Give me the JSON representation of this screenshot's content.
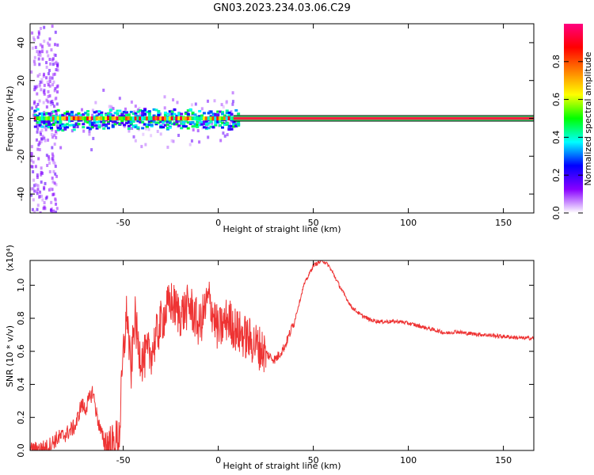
{
  "title": "GN03.2023.234.03.06.C29",
  "colors": {
    "snr_line": "#ee3333",
    "spectrogram_background": "#ffffff",
    "colormap": [
      "#ffffff",
      "#8800ff",
      "#0000ff",
      "#00ffff",
      "#00ff00",
      "#ffff00",
      "#ff8000",
      "#ff0000",
      "#ff0080"
    ]
  },
  "chart_data": [
    {
      "type": "heatmap",
      "xlabel": "Height of straight line (km)",
      "ylabel": "Frequency (Hz)",
      "xlim": [
        -99,
        166
      ],
      "ylim": [
        -50,
        50
      ],
      "xticks": [
        -50,
        0,
        50,
        100,
        150
      ],
      "yticks": [
        -40,
        -20,
        0,
        20,
        40
      ],
      "colorbar": {
        "label": "Normalized spectral amplitude",
        "range": [
          0,
          1
        ],
        "ticks": [
          "0.0",
          "0.2",
          "0.4",
          "0.6",
          "0.8"
        ]
      },
      "ridge": {
        "frequency": 0,
        "x_noisy_until": 10,
        "color_note": "dominant peak at 0 Hz, high amplitude (red) ridge; noisy scatter below 10 km"
      },
      "guide_lines_hz": [
        -1.5,
        1.5
      ]
    },
    {
      "type": "line",
      "xlabel": "Height of straight line (km)",
      "ylabel": "SNR (10 * v/v)",
      "scale_label": "(x10⁴)",
      "xlim": [
        -99,
        166
      ],
      "ylim": [
        0,
        1.15
      ],
      "xticks": [
        -50,
        0,
        50,
        100,
        150
      ],
      "yticks": [
        "0.0",
        "0.2",
        "0.4",
        "0.6",
        "0.8",
        "1.0"
      ],
      "series": [
        {
          "x": [
            -99,
            -90,
            -85,
            -80,
            -75,
            -72,
            -70,
            -66,
            -64,
            -62,
            -60,
            -55,
            -52,
            -50,
            -48,
            -46,
            -44,
            -42,
            -40,
            -35,
            -30,
            -25,
            -20,
            -15,
            -10,
            -5,
            0,
            5,
            10,
            15,
            20,
            25,
            28,
            30,
            32,
            35,
            40,
            45,
            50,
            55,
            58,
            60,
            65,
            70,
            75,
            80,
            85,
            90,
            95,
            100,
            110,
            120,
            125,
            130,
            140,
            150,
            160,
            166
          ],
          "y": [
            0.0,
            0.02,
            0.07,
            0.1,
            0.15,
            0.28,
            0.25,
            0.36,
            0.22,
            0.12,
            0.05,
            0.02,
            0.1,
            0.58,
            0.85,
            0.45,
            0.82,
            0.62,
            0.55,
            0.6,
            0.78,
            0.9,
            0.82,
            0.88,
            0.75,
            0.92,
            0.72,
            0.8,
            0.72,
            0.68,
            0.64,
            0.59,
            0.56,
            0.55,
            0.58,
            0.63,
            0.78,
            1.0,
            1.12,
            1.15,
            1.12,
            1.08,
            0.97,
            0.87,
            0.82,
            0.79,
            0.78,
            0.78,
            0.78,
            0.77,
            0.74,
            0.71,
            0.72,
            0.71,
            0.7,
            0.69,
            0.68,
            0.68
          ]
        }
      ]
    }
  ]
}
